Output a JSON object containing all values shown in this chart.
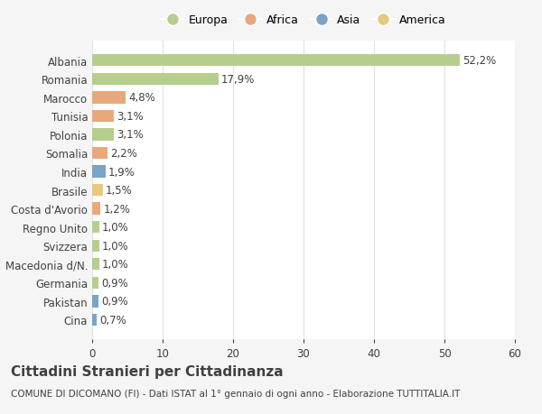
{
  "countries": [
    "Albania",
    "Romania",
    "Marocco",
    "Tunisia",
    "Polonia",
    "Somalia",
    "India",
    "Brasile",
    "Costa d'Avorio",
    "Regno Unito",
    "Svizzera",
    "Macedonia d/N.",
    "Germania",
    "Pakistan",
    "Cina"
  ],
  "values": [
    52.2,
    17.9,
    4.8,
    3.1,
    3.1,
    2.2,
    1.9,
    1.5,
    1.2,
    1.0,
    1.0,
    1.0,
    0.9,
    0.9,
    0.7
  ],
  "labels": [
    "52,2%",
    "17,9%",
    "4,8%",
    "3,1%",
    "3,1%",
    "2,2%",
    "1,9%",
    "1,5%",
    "1,2%",
    "1,0%",
    "1,0%",
    "1,0%",
    "0,9%",
    "0,9%",
    "0,7%"
  ],
  "colors": [
    "#b5ce8e",
    "#b5ce8e",
    "#e8a87c",
    "#e8a87c",
    "#b5ce8e",
    "#e8a87c",
    "#7aa3c8",
    "#e8c87c",
    "#e8a87c",
    "#b5ce8e",
    "#b5ce8e",
    "#b5ce8e",
    "#b5ce8e",
    "#7aa3c8",
    "#7aa3c8"
  ],
  "legend_labels": [
    "Europa",
    "Africa",
    "Asia",
    "America"
  ],
  "legend_colors": [
    "#b5ce8e",
    "#e8a87c",
    "#7aa3c8",
    "#e8c87c"
  ],
  "title": "Cittadini Stranieri per Cittadinanza",
  "subtitle": "COMUNE DI DICOMANO (FI) - Dati ISTAT al 1° gennaio di ogni anno - Elaborazione TUTTITALIA.IT",
  "xlim": [
    0,
    60
  ],
  "xticks": [
    0,
    10,
    20,
    30,
    40,
    50,
    60
  ],
  "background_color": "#f5f5f5",
  "bar_background": "#ffffff",
  "grid_color": "#e0e0e0",
  "text_color": "#404040",
  "label_fontsize": 8.5,
  "title_fontsize": 11,
  "subtitle_fontsize": 7.5,
  "bar_height": 0.65
}
